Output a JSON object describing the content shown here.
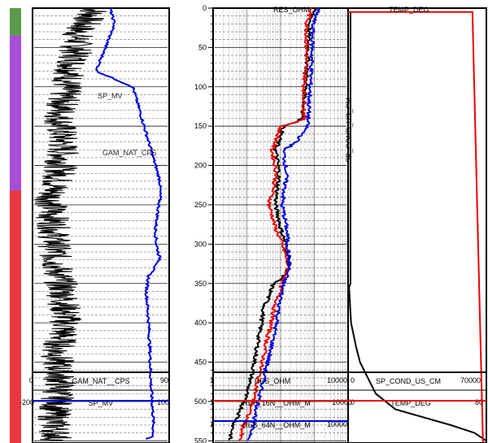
{
  "depth_axis": {
    "ticks": [
      0,
      50,
      100,
      150,
      200,
      250,
      300,
      350,
      400,
      450,
      500,
      550
    ],
    "range": [
      0,
      560
    ]
  },
  "zones": [
    {
      "from": 0,
      "to": 35,
      "color": "#5a9a4a"
    },
    {
      "from": 35,
      "to": 232,
      "color": "#a64fd6"
    },
    {
      "from": 232,
      "to": 560,
      "color": "#e8383e"
    }
  ],
  "headers": {
    "res_ohm": "RES_OHM",
    "temp_deg": "TEMP_DEG",
    "sp_cond_vertical": "SP_COND_US_CM"
  },
  "annotations": {
    "sp_mv": "SP_MV",
    "gam_nat_cps": "GAM_NAT_CPS"
  },
  "scales": {
    "track1": [
      {
        "left": "0",
        "name": "GAM_NAT__CPS",
        "right": "90",
        "color": "#000000"
      },
      {
        "left": "-200",
        "name": "SP_MV",
        "right": "100",
        "color": "#0000dd"
      }
    ],
    "track2": [
      {
        "left": "1",
        "name": "RES_OHM",
        "right": "10000",
        "color": "#000000"
      },
      {
        "left": "1",
        "name": "RES_16N__OHM_M",
        "right": "10000",
        "color": "#ee0000"
      },
      {
        "left": "1",
        "name": "RES_64N__OHM_M",
        "right": "10000",
        "color": "#0000dd"
      }
    ],
    "track3": [
      {
        "left": "0",
        "name": "SP_COND_US_CM",
        "right": "70000",
        "color": "#000000"
      },
      {
        "left": "0",
        "name": "TEMP_DEG",
        "right": "80",
        "color": "#ee0000"
      }
    ]
  },
  "chart_data": {
    "type": "line",
    "title": "",
    "y_axis": {
      "label": "",
      "range": [
        0,
        560
      ],
      "inverted": true
    },
    "tracks": [
      {
        "track": 1,
        "series": [
          {
            "name": "GAM_NAT__CPS",
            "color": "#000000",
            "xlim": [
              0,
              90
            ],
            "scale": "linear",
            "depth": [
              0,
              30,
              60,
              100,
              140,
              180,
              210,
              240,
              280,
              320,
              360,
              400,
              440,
              480,
              520,
              550
            ],
            "values": [
              42,
              30,
              28,
              22,
              18,
              20,
              18,
              12,
              14,
              15,
              20,
              22,
              16,
              18,
              14,
              16
            ]
          },
          {
            "name": "SP_MV",
            "color": "#0000dd",
            "xlim": [
              -200,
              100
            ],
            "scale": "linear",
            "depth": [
              0,
              20,
              50,
              80,
              100,
              120,
              140,
              160,
              180,
              200,
              220,
              240,
              260,
              280,
              300,
              320,
              340,
              360,
              400,
              440,
              480,
              520,
              545,
              548
            ],
            "values": [
              -30,
              -20,
              -40,
              -60,
              20,
              30,
              40,
              50,
              60,
              70,
              80,
              80,
              75,
              70,
              72,
              80,
              55,
              50,
              55,
              58,
              60,
              65,
              65,
              45
            ]
          }
        ]
      },
      {
        "track": 2,
        "series": [
          {
            "name": "RES_OHM",
            "color": "#000000",
            "xlim": [
              1,
              10000
            ],
            "scale": "log",
            "depth": [
              0,
              20,
              60,
              100,
              140,
              150,
              180,
              210,
              250,
              280,
              310,
              330,
              350,
              380,
              420,
              460,
              500,
              530,
              550
            ],
            "values": [
              1000,
              700,
              650,
              550,
              450,
              120,
              70,
              90,
              70,
              100,
              160,
              180,
              60,
              32,
              22,
              15,
              8,
              4,
              3
            ]
          },
          {
            "name": "RES_16N__OHM_M",
            "color": "#ee0000",
            "xlim": [
              1,
              10000
            ],
            "scale": "log",
            "depth": [
              0,
              20,
              60,
              100,
              140,
              150,
              180,
              210,
              250,
              280,
              310,
              330,
              350,
              380,
              420,
              460,
              500,
              530,
              550
            ],
            "values": [
              800,
              600,
              580,
              500,
              500,
              100,
              55,
              75,
              45,
              70,
              130,
              170,
              110,
              65,
              40,
              25,
              15,
              8,
              6
            ]
          },
          {
            "name": "RES_64N__OHM_M",
            "color": "#0000dd",
            "xlim": [
              1,
              10000
            ],
            "scale": "log",
            "depth": [
              0,
              20,
              60,
              100,
              140,
              150,
              180,
              210,
              250,
              280,
              310,
              330,
              350,
              380,
              420,
              460,
              500,
              530,
              550
            ],
            "values": [
              1300,
              900,
              850,
              750,
              650,
              600,
              120,
              150,
              110,
              150,
              170,
              180,
              120,
              90,
              60,
              35,
              22,
              15,
              12
            ]
          }
        ]
      },
      {
        "track": 3,
        "series": [
          {
            "name": "SP_COND_US_CM",
            "color": "#000000",
            "xlim": [
              0,
              70000
            ],
            "scale": "linear",
            "depth": [
              5,
              350,
              355,
              400,
              430,
              450,
              470,
              490,
              510,
              520,
              530,
              540,
              550
            ],
            "values": [
              1200,
              1200,
              500,
              1500,
              4000,
              6000,
              10000,
              14000,
              24000,
              38000,
              52000,
              64000,
              70000
            ]
          },
          {
            "name": "TEMP_DEG",
            "color": "#ee0000",
            "xlim": [
              0,
              80
            ],
            "scale": "linear",
            "depth": [
              5,
              5,
              10,
              552
            ],
            "values": [
              0,
              72,
              72,
              78
            ]
          }
        ]
      }
    ]
  }
}
